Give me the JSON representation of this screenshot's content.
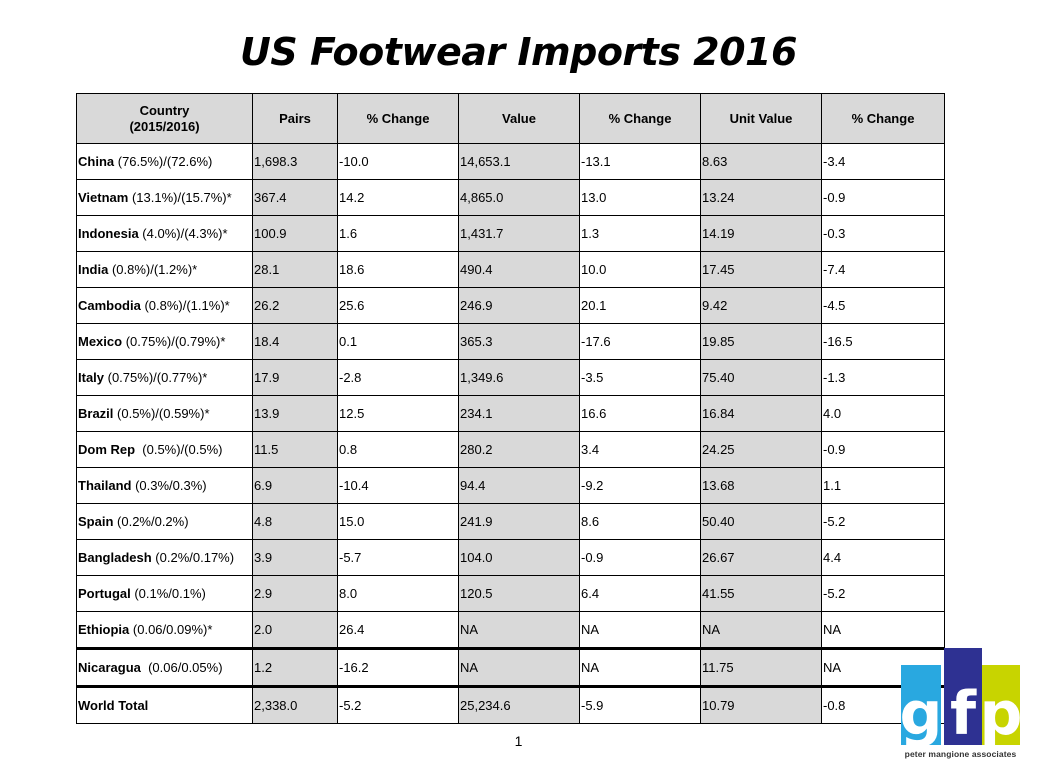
{
  "title": "US Footwear Imports 2016",
  "table": {
    "headers": {
      "country_line1": "Country",
      "country_line2": "(2015/2016)",
      "pairs": "Pairs",
      "pairs_change": "% Change",
      "value": "Value",
      "value_change": "% Change",
      "unit_value": "Unit Value",
      "unit_value_change": "% Change"
    },
    "rows": [
      {
        "country": "China",
        "share": " (76.5%)/(72.6%)",
        "pairs": "1,698.3",
        "pairs_change": "-10.0",
        "value": "14,653.1",
        "value_change": "-13.1",
        "unit_value": "8.63",
        "unit_value_change": "-3.4"
      },
      {
        "country": "Vietnam",
        "share": " (13.1%)/(15.7%)*",
        "pairs": "367.4",
        "pairs_change": "14.2",
        "value": "4,865.0",
        "value_change": "13.0",
        "unit_value": "13.24",
        "unit_value_change": "-0.9"
      },
      {
        "country": "Indonesia",
        "share": " (4.0%)/(4.3%)*",
        "pairs": "100.9",
        "pairs_change": "1.6",
        "value": "1,431.7",
        "value_change": "1.3",
        "unit_value": "14.19",
        "unit_value_change": "-0.3"
      },
      {
        "country": "India",
        "share": " (0.8%)/(1.2%)*",
        "pairs": "28.1",
        "pairs_change": "18.6",
        "value": "490.4",
        "value_change": "10.0",
        "unit_value": "17.45",
        "unit_value_change": "-7.4"
      },
      {
        "country": "Cambodia",
        "share": " (0.8%)/(1.1%)*",
        "pairs": "26.2",
        "pairs_change": "25.6",
        "value": "246.9",
        "value_change": "20.1",
        "unit_value": "9.42",
        "unit_value_change": "-4.5"
      },
      {
        "country": "Mexico",
        "share": " (0.75%)/(0.79%)*",
        "pairs": "18.4",
        "pairs_change": "0.1",
        "value": "365.3",
        "value_change": "-17.6",
        "unit_value": "19.85",
        "unit_value_change": "-16.5"
      },
      {
        "country": "Italy",
        "share": " (0.75%)/(0.77%)*",
        "pairs": "17.9",
        "pairs_change": "-2.8",
        "value": "1,349.6",
        "value_change": "-3.5",
        "unit_value": "75.40",
        "unit_value_change": "-1.3"
      },
      {
        "country": "Brazil",
        "share": " (0.5%)/(0.59%)*",
        "pairs": "13.9",
        "pairs_change": "12.5",
        "value": "234.1",
        "value_change": "16.6",
        "unit_value": "16.84",
        "unit_value_change": "4.0"
      },
      {
        "country": "Dom Rep",
        "share": "  (0.5%)/(0.5%)",
        "pairs": "11.5",
        "pairs_change": "0.8",
        "value": "280.2",
        "value_change": "3.4",
        "unit_value": "24.25",
        "unit_value_change": "-0.9"
      },
      {
        "country": "Thailand",
        "share": " (0.3%/0.3%)",
        "pairs": "6.9",
        "pairs_change": "-10.4",
        "value": "94.4",
        "value_change": "-9.2",
        "unit_value": "13.68",
        "unit_value_change": "1.1"
      },
      {
        "country": "Spain",
        "share": " (0.2%/0.2%)",
        "pairs": "4.8",
        "pairs_change": "15.0",
        "value": "241.9",
        "value_change": "8.6",
        "unit_value": "50.40",
        "unit_value_change": "-5.2"
      },
      {
        "country": "Bangladesh",
        "share": " (0.2%/0.17%)",
        "pairs": "3.9",
        "pairs_change": "-5.7",
        "value": "104.0",
        "value_change": "-0.9",
        "unit_value": "26.67",
        "unit_value_change": "4.4"
      },
      {
        "country": "Portugal",
        "share": " (0.1%/0.1%)",
        "pairs": "2.9",
        "pairs_change": "8.0",
        "value": "120.5",
        "value_change": "6.4",
        "unit_value": "41.55",
        "unit_value_change": "-5.2"
      },
      {
        "country": "Ethiopia",
        "share": " (0.06/0.09%)*",
        "pairs": "2.0",
        "pairs_change": "26.4",
        "value": "NA",
        "value_change": "NA",
        "unit_value": "NA",
        "unit_value_change": "NA"
      },
      {
        "country": "Nicaragua",
        "share": "  (0.06/0.05%)",
        "pairs": "1.2",
        "pairs_change": "-16.2",
        "value": "NA",
        "value_change": "NA",
        "unit_value": "11.75",
        "unit_value_change": "NA"
      },
      {
        "country": "World Total",
        "share": "",
        "pairs": "2,338.0",
        "pairs_change": "-5.2",
        "value": "25,234.6",
        "value_change": "-5.9",
        "unit_value": "10.79",
        "unit_value_change": "-0.8"
      }
    ]
  },
  "page_number": "1",
  "logo": {
    "letters": [
      "g",
      "f",
      "p"
    ],
    "caption": "peter mangione associates",
    "colors": {
      "g": "#29a8e0",
      "f": "#2e3192",
      "p": "#c8d400"
    }
  }
}
